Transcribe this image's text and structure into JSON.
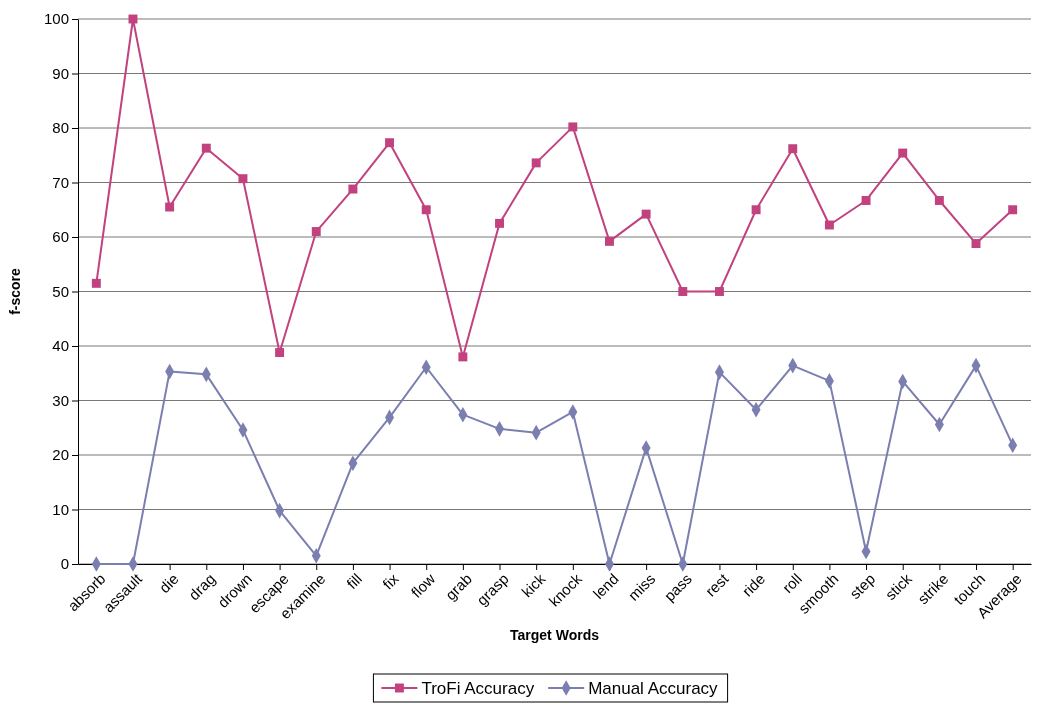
{
  "chart_data": {
    "type": "line",
    "xlabel": "Target Words",
    "ylabel": "f-score",
    "categories": [
      "absorb",
      "assault",
      "die",
      "drag",
      "drown",
      "escape",
      "examine",
      "fill",
      "fix",
      "flow",
      "grab",
      "grasp",
      "kick",
      "knock",
      "lend",
      "miss",
      "pass",
      "rest",
      "ride",
      "roll",
      "smooth",
      "step",
      "stick",
      "strike",
      "touch",
      "Average"
    ],
    "series": [
      {
        "name": "TroFi Accuracy",
        "color": "#c2417f",
        "marker": "square",
        "values": [
          51.5,
          100,
          65.5,
          76.3,
          70.7,
          38.8,
          61,
          68.8,
          77.3,
          65,
          38,
          62.5,
          73.6,
          80.2,
          59.2,
          64.2,
          50,
          50,
          65,
          76.2,
          62.2,
          66.7,
          75.4,
          66.7,
          58.8,
          65
        ]
      },
      {
        "name": "Manual Accuracy",
        "color": "#7b7fb0",
        "marker": "diamond",
        "values": [
          0,
          0,
          35.3,
          34.8,
          24.6,
          9.8,
          1.5,
          18.5,
          26.9,
          36.1,
          27.4,
          24.8,
          24.1,
          27.9,
          0,
          21.3,
          0,
          35.2,
          28.3,
          36.4,
          33.6,
          2.3,
          33.5,
          25.6,
          36.4,
          21.8
        ]
      }
    ],
    "ylim": [
      0,
      100
    ],
    "yticks": [
      0,
      10,
      20,
      30,
      40,
      50,
      60,
      70,
      80,
      90,
      100
    ],
    "grid": "y",
    "legend": "bottom",
    "line_style": "solid"
  }
}
